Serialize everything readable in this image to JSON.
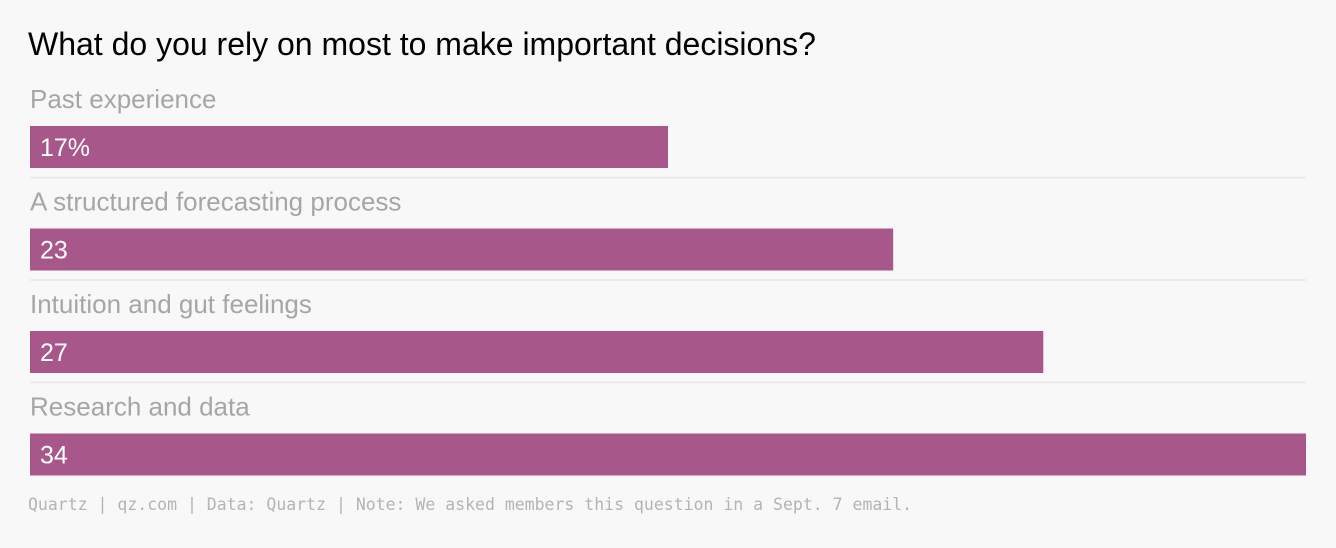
{
  "chart_data": {
    "type": "bar",
    "orientation": "horizontal",
    "title": "What do you rely on most to make important decisions?",
    "categories": [
      "Past experience",
      "A structured forecasting process",
      "Intuition and gut feelings",
      "Research and data"
    ],
    "values": [
      17,
      23,
      27,
      34
    ],
    "value_labels": [
      "17%",
      "23",
      "27",
      "34"
    ],
    "unit": "%",
    "xlim": [
      0,
      34
    ],
    "bar_color": "#a8578a",
    "category_label_color": "#a6a6a6",
    "value_label_color": "#ffffff",
    "separator_color": "#e6e6e6",
    "grid": false,
    "legend": "none",
    "footer": "Quartz | qz.com | Data: Quartz | Note: We asked members this question in a Sept. 7 email."
  }
}
